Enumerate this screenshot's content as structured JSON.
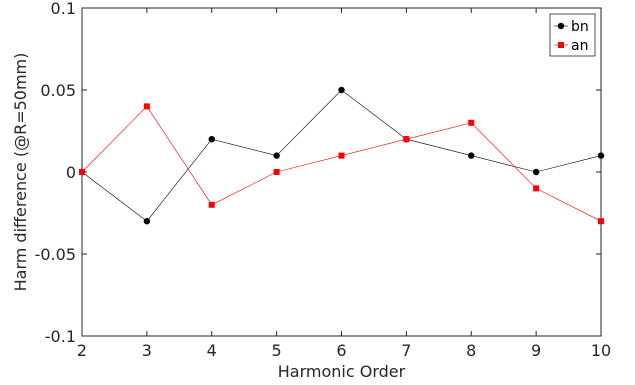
{
  "chart_data": {
    "type": "line",
    "xlabel": "Harmonic Order",
    "ylabel": "Harm difference (@R=50mm)",
    "xlim": [
      2,
      10
    ],
    "ylim": [
      -0.1,
      0.1
    ],
    "x_ticks": [
      "2",
      "3",
      "4",
      "5",
      "6",
      "7",
      "8",
      "9",
      "10"
    ],
    "y_ticks": [
      "-0.1",
      "-0.05",
      "0",
      "0.05",
      "0.1"
    ],
    "grid": false,
    "legend_position": "top-right",
    "x": [
      2,
      3,
      4,
      5,
      6,
      7,
      8,
      9,
      10
    ],
    "series": [
      {
        "name": "bn",
        "color": "#000000",
        "marker": "circle",
        "values": [
          0,
          -0.03,
          0.02,
          0.01,
          0.05,
          0.02,
          0.01,
          0,
          0.01
        ]
      },
      {
        "name": "an",
        "color": "#ff0000",
        "marker": "square",
        "values": [
          0,
          0.04,
          -0.02,
          0,
          0.01,
          0.02,
          0.03,
          -0.01,
          -0.03
        ]
      }
    ]
  }
}
